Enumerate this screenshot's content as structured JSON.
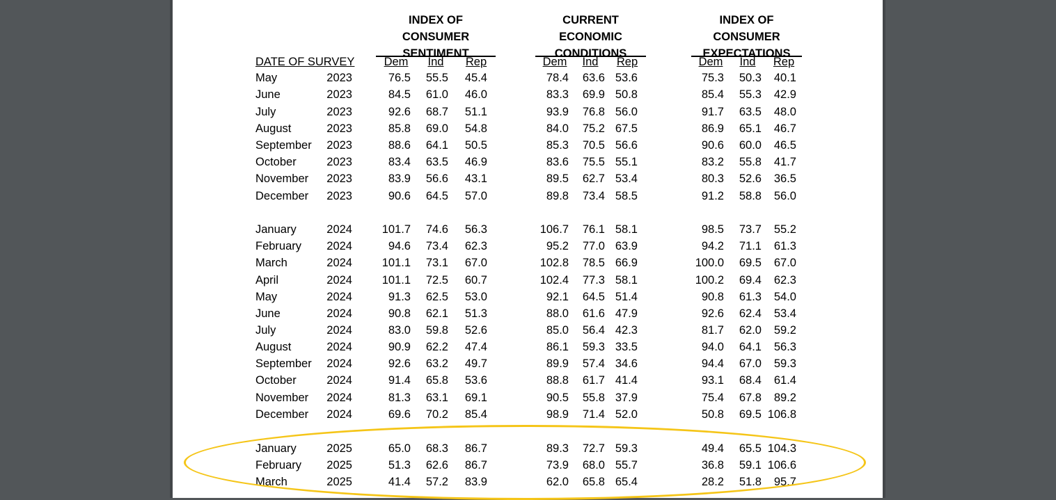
{
  "headers": {
    "group1": [
      "INDEX OF CONSUMER",
      "SENTIMENT"
    ],
    "group2": [
      "CURRENT ECONOMIC",
      "CONDITIONS"
    ],
    "group3": [
      "INDEX OF CONSUMER",
      "EXPECTATIONS"
    ],
    "date_label": "DATE OF SURVEY",
    "sub": [
      "Dem",
      "Ind",
      "Rep"
    ]
  },
  "rows": [
    {
      "m": "May",
      "y": "2023",
      "v": [
        "76.5",
        "55.5",
        "45.4",
        "78.4",
        "63.6",
        "53.6",
        "75.3",
        "50.3",
        "40.1"
      ]
    },
    {
      "m": "June",
      "y": "2023",
      "v": [
        "84.5",
        "61.0",
        "46.0",
        "83.3",
        "69.9",
        "50.8",
        "85.4",
        "55.3",
        "42.9"
      ]
    },
    {
      "m": "July",
      "y": "2023",
      "v": [
        "92.6",
        "68.7",
        "51.1",
        "93.9",
        "76.8",
        "56.0",
        "91.7",
        "63.5",
        "48.0"
      ]
    },
    {
      "m": "August",
      "y": "2023",
      "v": [
        "85.8",
        "69.0",
        "54.8",
        "84.0",
        "75.2",
        "67.5",
        "86.9",
        "65.1",
        "46.7"
      ]
    },
    {
      "m": "September",
      "y": "2023",
      "v": [
        "88.6",
        "64.1",
        "50.5",
        "85.3",
        "70.5",
        "56.6",
        "90.6",
        "60.0",
        "46.5"
      ]
    },
    {
      "m": "October",
      "y": "2023",
      "v": [
        "83.4",
        "63.5",
        "46.9",
        "83.6",
        "75.5",
        "55.1",
        "83.2",
        "55.8",
        "41.7"
      ]
    },
    {
      "m": "November",
      "y": "2023",
      "v": [
        "83.9",
        "56.6",
        "43.1",
        "89.5",
        "62.7",
        "53.4",
        "80.3",
        "52.6",
        "36.5"
      ]
    },
    {
      "m": "December",
      "y": "2023",
      "v": [
        "90.6",
        "64.5",
        "57.0",
        "89.8",
        "73.4",
        "58.5",
        "91.2",
        "58.8",
        "56.0"
      ]
    },
    {
      "m": "January",
      "y": "2024",
      "v": [
        "101.7",
        "74.6",
        "56.3",
        "106.7",
        "76.1",
        "58.1",
        "98.5",
        "73.7",
        "55.2"
      ]
    },
    {
      "m": "February",
      "y": "2024",
      "v": [
        "94.6",
        "73.4",
        "62.3",
        "95.2",
        "77.0",
        "63.9",
        "94.2",
        "71.1",
        "61.3"
      ]
    },
    {
      "m": "March",
      "y": "2024",
      "v": [
        "101.1",
        "73.1",
        "67.0",
        "102.8",
        "78.5",
        "66.9",
        "100.0",
        "69.5",
        "67.0"
      ]
    },
    {
      "m": "April",
      "y": "2024",
      "v": [
        "101.1",
        "72.5",
        "60.7",
        "102.4",
        "77.3",
        "58.1",
        "100.2",
        "69.4",
        "62.3"
      ]
    },
    {
      "m": "May",
      "y": "2024",
      "v": [
        "91.3",
        "62.5",
        "53.0",
        "92.1",
        "64.5",
        "51.4",
        "90.8",
        "61.3",
        "54.0"
      ]
    },
    {
      "m": "June",
      "y": "2024",
      "v": [
        "90.8",
        "62.1",
        "51.3",
        "88.0",
        "61.6",
        "47.9",
        "92.6",
        "62.4",
        "53.4"
      ]
    },
    {
      "m": "July",
      "y": "2024",
      "v": [
        "83.0",
        "59.8",
        "52.6",
        "85.0",
        "56.4",
        "42.3",
        "81.7",
        "62.0",
        "59.2"
      ]
    },
    {
      "m": "August",
      "y": "2024",
      "v": [
        "90.9",
        "62.2",
        "47.4",
        "86.1",
        "59.3",
        "33.5",
        "94.0",
        "64.1",
        "56.3"
      ]
    },
    {
      "m": "September",
      "y": "2024",
      "v": [
        "92.6",
        "63.2",
        "49.7",
        "89.9",
        "57.4",
        "34.6",
        "94.4",
        "67.0",
        "59.3"
      ]
    },
    {
      "m": "October",
      "y": "2024",
      "v": [
        "91.4",
        "65.8",
        "53.6",
        "88.8",
        "61.7",
        "41.4",
        "93.1",
        "68.4",
        "61.4"
      ]
    },
    {
      "m": "November",
      "y": "2024",
      "v": [
        "81.3",
        "63.1",
        "69.1",
        "90.5",
        "55.8",
        "37.9",
        "75.4",
        "67.8",
        "89.2"
      ]
    },
    {
      "m": "December",
      "y": "2024",
      "v": [
        "69.6",
        "70.2",
        "85.4",
        "98.9",
        "71.4",
        "52.0",
        "50.8",
        "69.5",
        "106.8"
      ]
    },
    {
      "m": "January",
      "y": "2025",
      "v": [
        "65.0",
        "68.3",
        "86.7",
        "89.3",
        "72.7",
        "59.3",
        "49.4",
        "65.5",
        "104.3"
      ]
    },
    {
      "m": "February",
      "y": "2025",
      "v": [
        "51.3",
        "62.6",
        "86.7",
        "73.9",
        "68.0",
        "55.7",
        "36.8",
        "59.1",
        "106.6"
      ]
    },
    {
      "m": "March",
      "y": "2025",
      "v": [
        "41.4",
        "57.2",
        "83.9",
        "62.0",
        "65.8",
        "65.4",
        "28.2",
        "51.8",
        "95.7"
      ]
    }
  ],
  "highlight_color": "#f5c518"
}
